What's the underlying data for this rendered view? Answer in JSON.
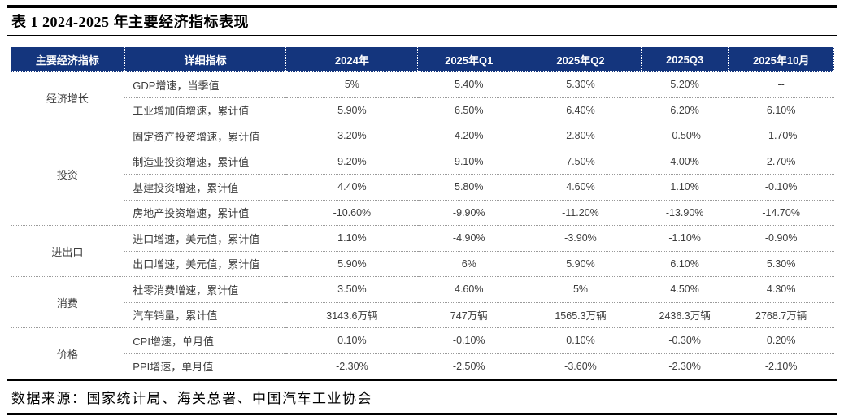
{
  "title": "表 1 2024-2025 年主要经济指标表现",
  "table": {
    "columns": [
      "主要经济指标",
      "详细指标",
      "2024年",
      "2025年Q1",
      "2025年Q2",
      "2025Q3",
      "2025年10月"
    ],
    "groups": [
      {
        "category": "经济增长",
        "rows": [
          {
            "indicator": "GDP增速，当季值",
            "values": [
              "5%",
              "5.40%",
              "5.30%",
              "5.20%",
              "--"
            ]
          },
          {
            "indicator": "工业增加值增速，累计值",
            "values": [
              "5.90%",
              "6.50%",
              "6.40%",
              "6.20%",
              "6.10%"
            ]
          }
        ]
      },
      {
        "category": "投资",
        "rows": [
          {
            "indicator": "固定资产投资增速，累计值",
            "values": [
              "3.20%",
              "4.20%",
              "2.80%",
              "-0.50%",
              "-1.70%"
            ]
          },
          {
            "indicator": "制造业投资增速，累计值",
            "values": [
              "9.20%",
              "9.10%",
              "7.50%",
              "4.00%",
              "2.70%"
            ]
          },
          {
            "indicator": "基建投资增速，累计值",
            "values": [
              "4.40%",
              "5.80%",
              "4.60%",
              "1.10%",
              "-0.10%"
            ]
          },
          {
            "indicator": "房地产投资增速，累计值",
            "values": [
              "-10.60%",
              "-9.90%",
              "-11.20%",
              "-13.90%",
              "-14.70%"
            ]
          }
        ]
      },
      {
        "category": "进出口",
        "rows": [
          {
            "indicator": "进口增速，美元值，累计值",
            "values": [
              "1.10%",
              "-4.90%",
              "-3.90%",
              "-1.10%",
              "-0.90%"
            ]
          },
          {
            "indicator": "出口增速，美元值，累计值",
            "values": [
              "5.90%",
              "6%",
              "5.90%",
              "6.10%",
              "5.30%"
            ]
          }
        ]
      },
      {
        "category": "消费",
        "rows": [
          {
            "indicator": "社零消费增速，累计值",
            "values": [
              "3.50%",
              "4.60%",
              "5%",
              "4.50%",
              "4.30%"
            ]
          },
          {
            "indicator": "汽车销量，累计值",
            "values": [
              "3143.6万辆",
              "747万辆",
              "1565.3万辆",
              "2436.3万辆",
              "2768.7万辆"
            ]
          }
        ]
      },
      {
        "category": "价格",
        "rows": [
          {
            "indicator": "CPI增速，单月值",
            "values": [
              "0.10%",
              "-0.10%",
              "0.10%",
              "-0.30%",
              "0.20%"
            ]
          },
          {
            "indicator": "PPI增速，单月值",
            "values": [
              "-2.30%",
              "-2.50%",
              "-3.60%",
              "-2.30%",
              "-2.10%"
            ]
          }
        ]
      }
    ]
  },
  "footer": {
    "source": "数据来源：国家统计局、海关总署、中国汽车工业协会"
  },
  "colors": {
    "header_bg": "#14357D",
    "header_text": "#FFFFFF",
    "body_text": "#3D3D3D",
    "dotted_line": "#9A9A9A",
    "frame_line": "#000000"
  }
}
